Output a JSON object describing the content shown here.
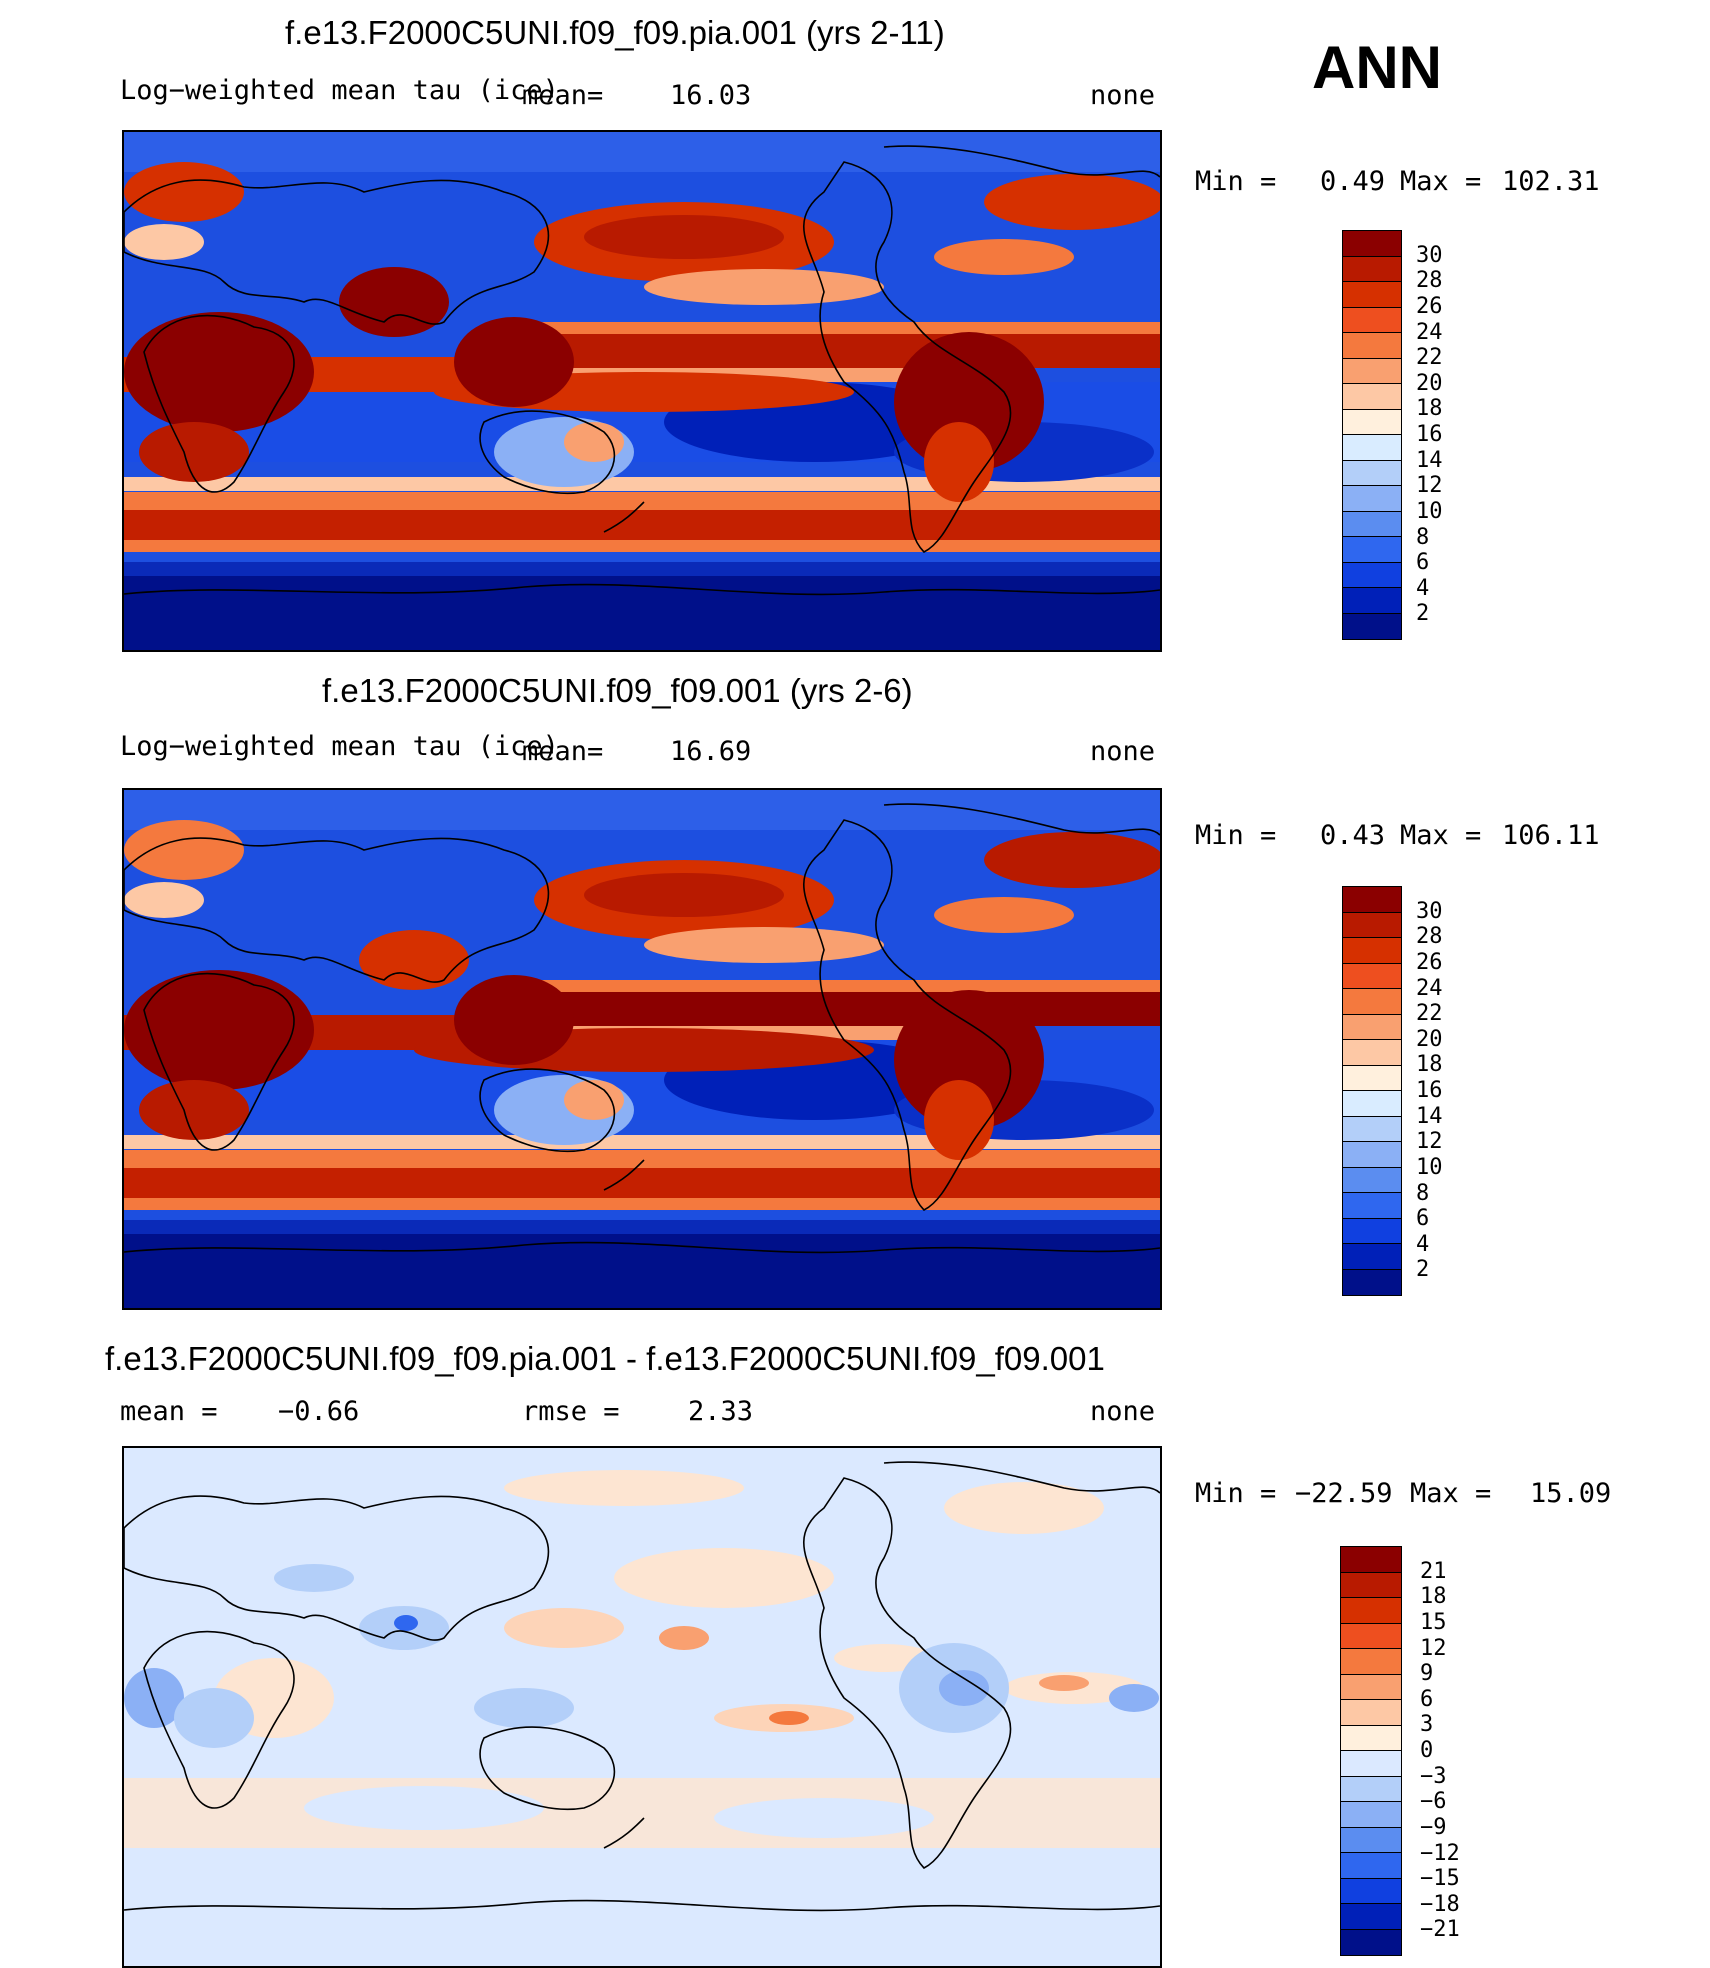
{
  "season": "ANN",
  "panels": [
    {
      "id": "top",
      "title": "f.e13.F2000C5UNI.f09_f09.pia.001 (yrs 2-11)",
      "field_label": "Log−weighted mean tau (ice)",
      "stat_label": "mean=",
      "stat_value": "16.03",
      "units": "none",
      "min_label": "Min =",
      "min_value": "0.49",
      "max_label": "Max =",
      "max_value": "102.31",
      "colorbar": {
        "colors": [
          "#8b0000",
          "#b81a00",
          "#d63000",
          "#ee4f1f",
          "#f4793e",
          "#f9a070",
          "#fdc8a5",
          "#fff0dd",
          "#d9ecff",
          "#b3cff9",
          "#8bb0f5",
          "#5b8df0",
          "#2f67ef",
          "#1040e0",
          "#0020b8",
          "#00108a"
        ],
        "labels": [
          "30",
          "28",
          "26",
          "24",
          "22",
          "20",
          "18",
          "16",
          "14",
          "12",
          "10",
          "8",
          "6",
          "4",
          "2"
        ]
      }
    },
    {
      "id": "middle",
      "title": "f.e13.F2000C5UNI.f09_f09.001 (yrs 2-6)",
      "field_label": "Log−weighted mean tau (ice)",
      "stat_label": "mean=",
      "stat_value": "16.69",
      "units": "none",
      "min_label": "Min =",
      "min_value": "0.43",
      "max_label": "Max =",
      "max_value": "106.11",
      "colorbar": {
        "colors": [
          "#8b0000",
          "#b81a00",
          "#d63000",
          "#ee4f1f",
          "#f4793e",
          "#f9a070",
          "#fdc8a5",
          "#fff0dd",
          "#d9ecff",
          "#b3cff9",
          "#8bb0f5",
          "#5b8df0",
          "#2f67ef",
          "#1040e0",
          "#0020b8",
          "#00108a"
        ],
        "labels": [
          "30",
          "28",
          "26",
          "24",
          "22",
          "20",
          "18",
          "16",
          "14",
          "12",
          "10",
          "8",
          "6",
          "4",
          "2"
        ]
      }
    },
    {
      "id": "diff",
      "title": "f.e13.F2000C5UNI.f09_f09.pia.001 - f.e13.F2000C5UNI.f09_f09.001",
      "field_label": "mean =",
      "field_value": "−0.66",
      "stat_label": "rmse =",
      "stat_value": "2.33",
      "units": "none",
      "min_label": "Min =",
      "min_value": "−22.59",
      "max_label": "Max =",
      "max_value": "15.09",
      "colorbar": {
        "colors": [
          "#8b0000",
          "#b81a00",
          "#d63000",
          "#ee4f1f",
          "#f4793e",
          "#f9a070",
          "#fdc8a5",
          "#fff0dd",
          "#dbe9ff",
          "#b3cff9",
          "#8bb0f5",
          "#5b8df0",
          "#2f67ef",
          "#1040e0",
          "#0020b8",
          "#00108a"
        ],
        "labels": [
          "21",
          "18",
          "15",
          "12",
          "9",
          "6",
          "3",
          "0",
          "−3",
          "−6",
          "−9",
          "−12",
          "−15",
          "−18",
          "−21"
        ]
      }
    }
  ]
}
